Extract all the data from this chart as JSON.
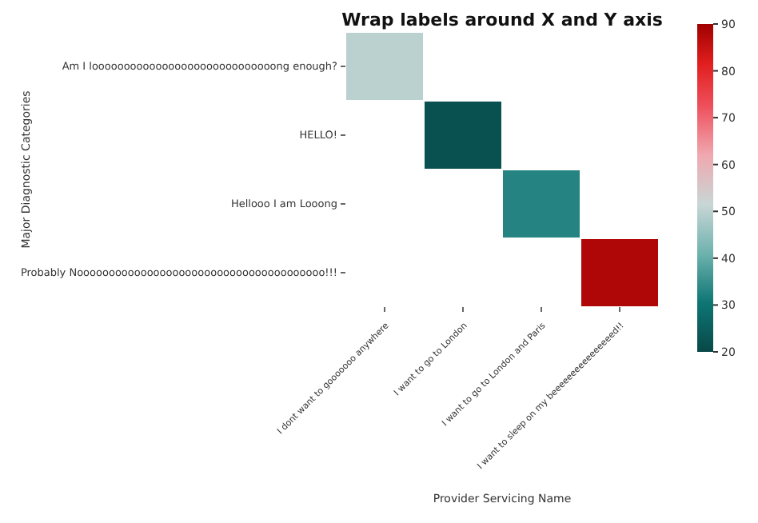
{
  "chart_data": {
    "type": "heatmap",
    "title": "Wrap labels around X and Y axis",
    "xlabel": "Provider Servicing Name",
    "ylabel": "Major Diagnostic Categories",
    "categories": [
      "I dont want to gooooooo anywhere",
      "I want to go to London",
      "I want to go to London and Paris",
      "I want to sleep on my beeeeeeeeeeeeeeeed!!"
    ],
    "y_categories": [
      "Am I looooooooooooooooooooooooooooong enough?",
      "HELLO!",
      "Hellooo I am Looong",
      "Probably Nooooooooooooooooooooooooooooooooooooooo!!!"
    ],
    "cells": [
      [
        50,
        null,
        null,
        null
      ],
      [
        null,
        22,
        null,
        null
      ],
      [
        null,
        null,
        33,
        null
      ],
      [
        null,
        null,
        null,
        88
      ]
    ],
    "clim": [
      20,
      90
    ],
    "cticks": [
      20,
      30,
      40,
      50,
      60,
      70,
      80,
      90
    ]
  }
}
